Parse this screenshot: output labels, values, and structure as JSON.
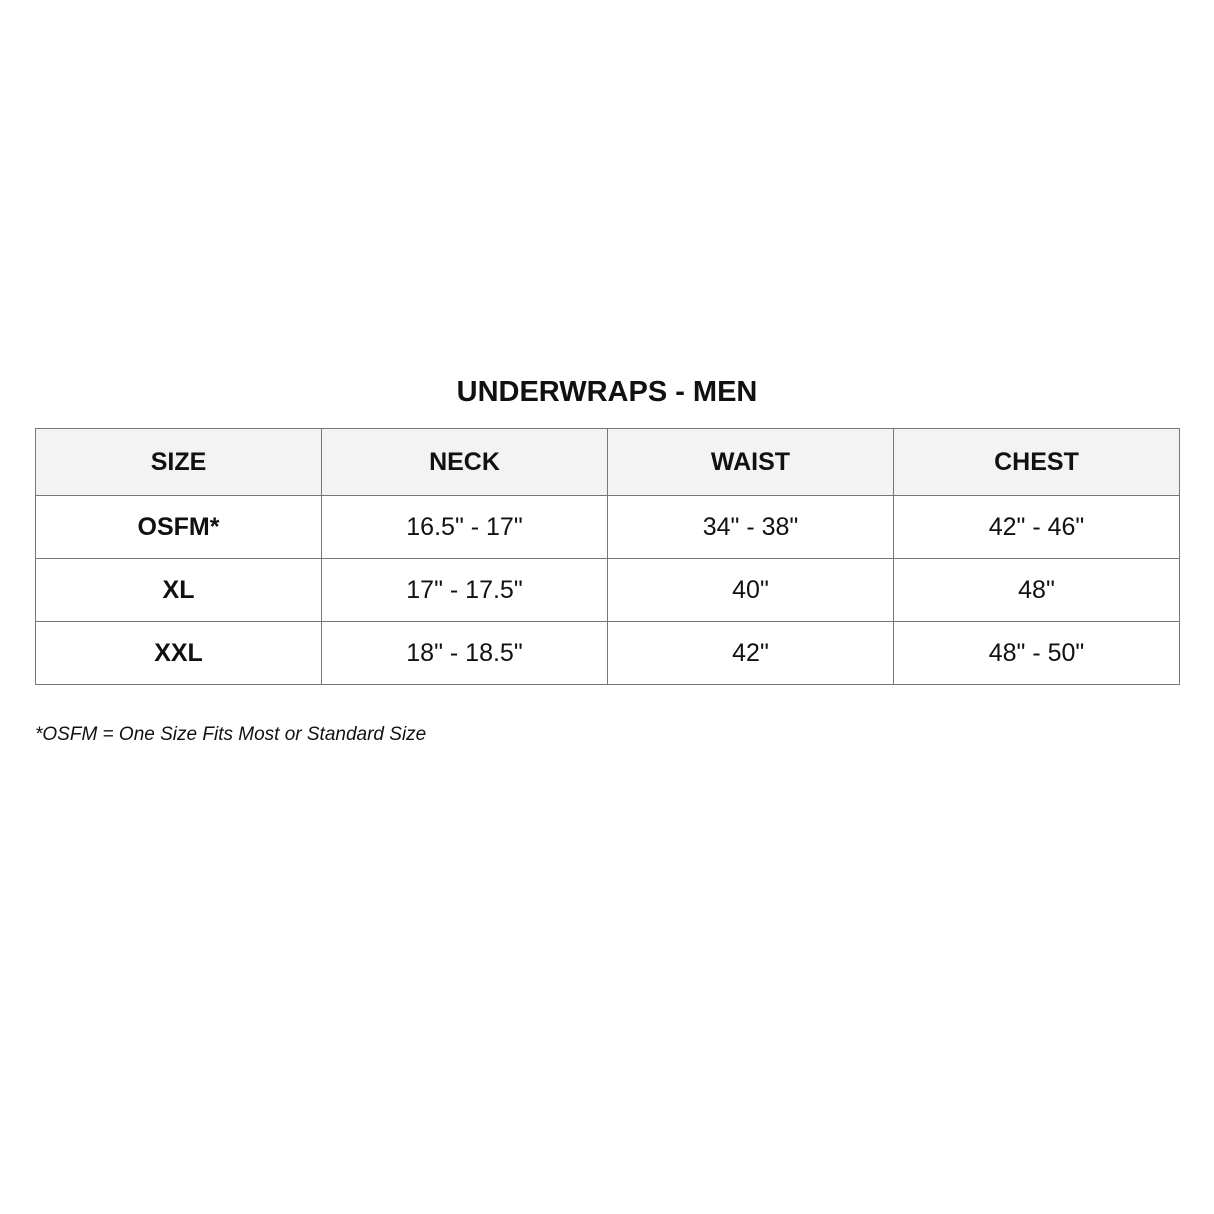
{
  "title": "UNDERWRAPS - MEN",
  "table": {
    "headers": [
      "SIZE",
      "NECK",
      "WAIST",
      "CHEST"
    ],
    "rows": [
      [
        "OSFM*",
        "16.5\" - 17\"",
        "34\" - 38\"",
        "42\" - 46\""
      ],
      [
        "XL",
        "17\" - 17.5\"",
        "40\"",
        "48\""
      ],
      [
        "XXL",
        "18\" - 18.5\"",
        "42\"",
        "48\" - 50\""
      ]
    ]
  },
  "footnote": "*OSFM = One Size Fits Most or Standard Size"
}
